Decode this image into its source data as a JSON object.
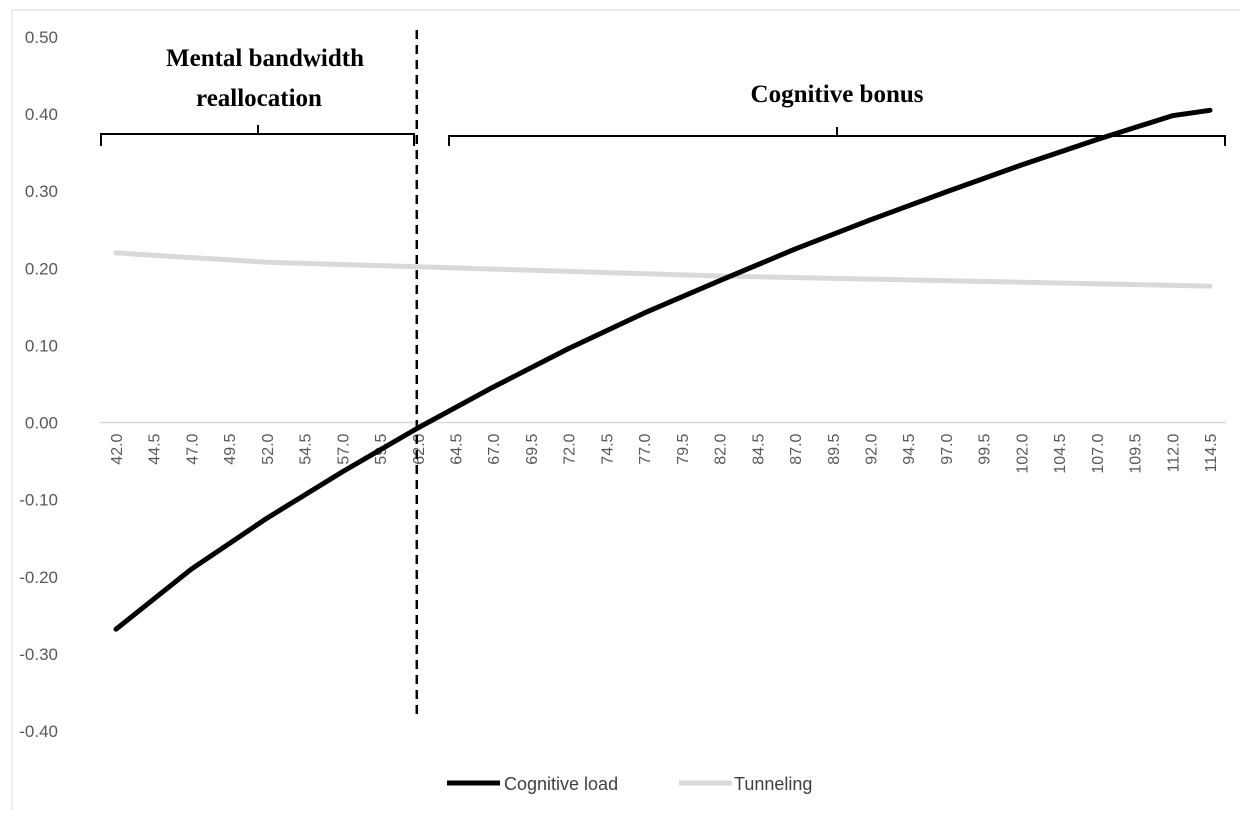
{
  "chart_data": {
    "type": "line",
    "title": "",
    "xlabel": "",
    "ylabel": "",
    "ylim": [
      -0.4,
      0.5
    ],
    "y_ticks": [
      "0.50",
      "0.40",
      "0.30",
      "0.20",
      "0.10",
      "0.00",
      "-0.10",
      "-0.20",
      "-0.30",
      "-0.40"
    ],
    "x_ticks": [
      "42.0",
      "44.5",
      "47.0",
      "49.5",
      "52.0",
      "54.5",
      "57.0",
      "59.5",
      "62.0",
      "64.5",
      "67.0",
      "69.5",
      "72.0",
      "74.5",
      "77.0",
      "79.5",
      "82.0",
      "84.5",
      "87.0",
      "89.5",
      "92.0",
      "94.5",
      "97.0",
      "99.5",
      "102.0",
      "104.5",
      "107.0",
      "109.5",
      "112.0",
      "114.5"
    ],
    "x_range": [
      42.0,
      114.5
    ],
    "grid": false,
    "legend_position": "bottom",
    "series": [
      {
        "name": "Cognitive load",
        "color": "#000000",
        "x": [
          42.0,
          47.0,
          52.0,
          57.0,
          62.0,
          67.0,
          72.0,
          77.0,
          82.0,
          87.0,
          92.0,
          97.0,
          102.0,
          107.0,
          112.0,
          114.5
        ],
        "y": [
          -0.268,
          -0.19,
          -0.124,
          -0.064,
          -0.007,
          0.046,
          0.096,
          0.142,
          0.184,
          0.225,
          0.263,
          0.299,
          0.334,
          0.367,
          0.398,
          0.405
        ]
      },
      {
        "name": "Tunneling",
        "color": "#d9d9d9",
        "x": [
          42.0,
          52.0,
          62.0,
          72.0,
          82.0,
          92.0,
          102.0,
          114.5
        ],
        "y": [
          0.22,
          0.208,
          0.202,
          0.196,
          0.19,
          0.186,
          0.182,
          0.177
        ]
      }
    ],
    "annotations": {
      "divider_x": 62.0,
      "left_region_line1": "Mental bandwidth",
      "left_region_line2": "reallocation",
      "right_region": "Cognitive bonus"
    }
  }
}
